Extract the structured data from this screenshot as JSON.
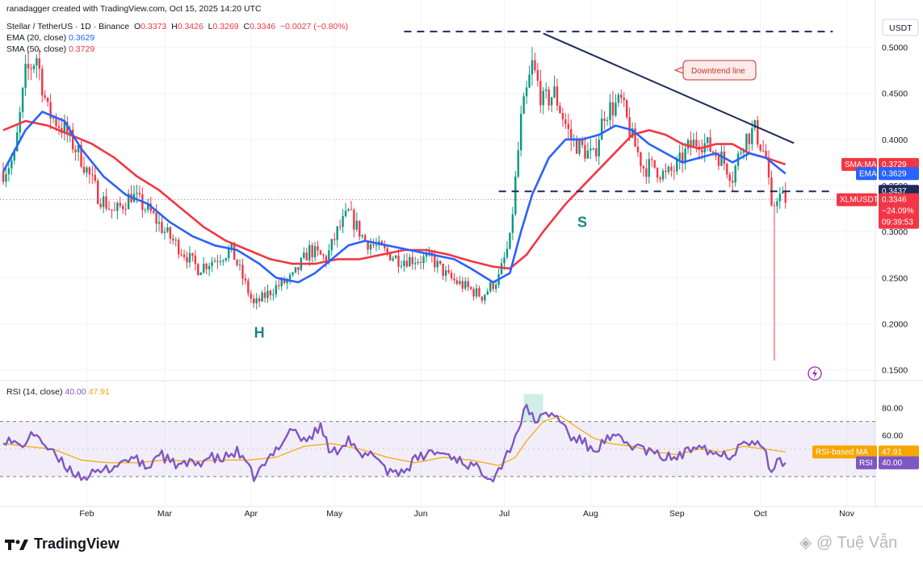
{
  "header": {
    "credit": "ranadagger created with TradingView.com, Oct 15, 2025 14:20 UTC",
    "symbol": "Stellar / TetherUS · 1D · Binance",
    "o_label": "O",
    "o": "0.3373",
    "h_label": "H",
    "h": "0.3426",
    "l_label": "L",
    "l": "0.3269",
    "c_label": "C",
    "c": "0.3346",
    "change": "−0.0027 (−0.80%)",
    "ema_label": "EMA (20, close)",
    "ema_value": "0.3629",
    "sma_label": "SMA (50, close)",
    "sma_value": "0.3729",
    "rsi_label": "RSI (14, close)",
    "rsi_value": "40.00",
    "rsi_ma_value": "47.91"
  },
  "footer": {
    "brand": "TradingView",
    "watermark": "Tuệ Vẫn"
  },
  "colors": {
    "up": "#089981",
    "down": "#f23645",
    "ema": "#2962ff",
    "sma": "#f23645",
    "rsi": "#7e57c2",
    "rsi_ma": "#f7a600",
    "trend": "#1e2a5a"
  },
  "chart_data": [
    {
      "type": "candlestick",
      "currency": "USDT",
      "ylim": [
        0.14,
        0.525
      ],
      "y_ticks": [
        "0.5000",
        "0.4500",
        "0.4000",
        "0.3500",
        "0.3000",
        "0.2500",
        "0.2000",
        "0.1500"
      ],
      "y_tick_values": [
        0.5,
        0.45,
        0.4,
        0.35,
        0.3,
        0.25,
        0.2,
        0.15
      ],
      "x_ticks": [
        "Feb",
        "Mar",
        "Apr",
        "May",
        "Jun",
        "Jul",
        "Aug",
        "Sep",
        "Oct",
        "Nov"
      ],
      "x_tick_days": [
        32,
        60,
        91,
        121,
        152,
        182,
        213,
        244,
        274,
        305
      ],
      "x_range_days": [
        2,
        315
      ],
      "series_anchors": {
        "close": [
          [
            2,
            0.365
          ],
          [
            6,
            0.38
          ],
          [
            10,
            0.47
          ],
          [
            14,
            0.49
          ],
          [
            18,
            0.43
          ],
          [
            24,
            0.41
          ],
          [
            30,
            0.38
          ],
          [
            36,
            0.34
          ],
          [
            42,
            0.32
          ],
          [
            48,
            0.34
          ],
          [
            55,
            0.32
          ],
          [
            60,
            0.3
          ],
          [
            66,
            0.28
          ],
          [
            72,
            0.26
          ],
          [
            78,
            0.27
          ],
          [
            84,
            0.28
          ],
          [
            88,
            0.25
          ],
          [
            92,
            0.22
          ],
          [
            96,
            0.23
          ],
          [
            100,
            0.24
          ],
          [
            106,
            0.25
          ],
          [
            112,
            0.28
          ],
          [
            118,
            0.27
          ],
          [
            122,
            0.3
          ],
          [
            126,
            0.32
          ],
          [
            132,
            0.29
          ],
          [
            138,
            0.28
          ],
          [
            144,
            0.27
          ],
          [
            150,
            0.27
          ],
          [
            156,
            0.27
          ],
          [
            162,
            0.25
          ],
          [
            168,
            0.24
          ],
          [
            174,
            0.23
          ],
          [
            180,
            0.25
          ],
          [
            184,
            0.29
          ],
          [
            188,
            0.42
          ],
          [
            192,
            0.48
          ],
          [
            196,
            0.44
          ],
          [
            200,
            0.45
          ],
          [
            206,
            0.4
          ],
          [
            210,
            0.39
          ],
          [
            214,
            0.38
          ],
          [
            218,
            0.43
          ],
          [
            224,
            0.44
          ],
          [
            228,
            0.4
          ],
          [
            232,
            0.37
          ],
          [
            236,
            0.37
          ],
          [
            240,
            0.36
          ],
          [
            244,
            0.37
          ],
          [
            248,
            0.39
          ],
          [
            252,
            0.4
          ],
          [
            256,
            0.39
          ],
          [
            260,
            0.38
          ],
          [
            264,
            0.36
          ],
          [
            268,
            0.4
          ],
          [
            272,
            0.41
          ],
          [
            276,
            0.38
          ],
          [
            278,
            0.32
          ],
          [
            280,
            0.34
          ],
          [
            283,
            0.3346
          ]
        ],
        "ema20": [
          [
            2,
            0.365
          ],
          [
            10,
            0.41
          ],
          [
            16,
            0.43
          ],
          [
            24,
            0.42
          ],
          [
            30,
            0.39
          ],
          [
            38,
            0.36
          ],
          [
            46,
            0.34
          ],
          [
            54,
            0.33
          ],
          [
            62,
            0.31
          ],
          [
            70,
            0.295
          ],
          [
            78,
            0.285
          ],
          [
            86,
            0.28
          ],
          [
            94,
            0.265
          ],
          [
            100,
            0.25
          ],
          [
            108,
            0.245
          ],
          [
            114,
            0.255
          ],
          [
            120,
            0.27
          ],
          [
            126,
            0.285
          ],
          [
            132,
            0.29
          ],
          [
            140,
            0.285
          ],
          [
            148,
            0.28
          ],
          [
            156,
            0.275
          ],
          [
            164,
            0.27
          ],
          [
            170,
            0.26
          ],
          [
            178,
            0.245
          ],
          [
            184,
            0.255
          ],
          [
            188,
            0.3
          ],
          [
            192,
            0.34
          ],
          [
            198,
            0.38
          ],
          [
            204,
            0.4
          ],
          [
            210,
            0.4
          ],
          [
            216,
            0.405
          ],
          [
            222,
            0.415
          ],
          [
            228,
            0.41
          ],
          [
            234,
            0.395
          ],
          [
            240,
            0.385
          ],
          [
            246,
            0.375
          ],
          [
            252,
            0.38
          ],
          [
            258,
            0.385
          ],
          [
            264,
            0.375
          ],
          [
            270,
            0.385
          ],
          [
            276,
            0.38
          ],
          [
            283,
            0.3629
          ]
        ],
        "sma50": [
          [
            2,
            0.41
          ],
          [
            10,
            0.42
          ],
          [
            18,
            0.415
          ],
          [
            26,
            0.405
          ],
          [
            34,
            0.395
          ],
          [
            42,
            0.38
          ],
          [
            50,
            0.36
          ],
          [
            58,
            0.345
          ],
          [
            66,
            0.325
          ],
          [
            74,
            0.305
          ],
          [
            82,
            0.29
          ],
          [
            90,
            0.28
          ],
          [
            98,
            0.27
          ],
          [
            106,
            0.265
          ],
          [
            114,
            0.265
          ],
          [
            122,
            0.27
          ],
          [
            130,
            0.27
          ],
          [
            138,
            0.275
          ],
          [
            146,
            0.28
          ],
          [
            154,
            0.28
          ],
          [
            162,
            0.275
          ],
          [
            170,
            0.268
          ],
          [
            178,
            0.262
          ],
          [
            184,
            0.26
          ],
          [
            190,
            0.275
          ],
          [
            196,
            0.3
          ],
          [
            204,
            0.33
          ],
          [
            212,
            0.355
          ],
          [
            220,
            0.38
          ],
          [
            228,
            0.405
          ],
          [
            234,
            0.41
          ],
          [
            240,
            0.405
          ],
          [
            246,
            0.395
          ],
          [
            252,
            0.39
          ],
          [
            258,
            0.395
          ],
          [
            264,
            0.395
          ],
          [
            270,
            0.385
          ],
          [
            276,
            0.38
          ],
          [
            283,
            0.3729
          ]
        ]
      },
      "candle_count": 283,
      "annotations": [
        {
          "kind": "hline",
          "label": "",
          "value": 0.517,
          "from_day": 146,
          "to_day": 300
        },
        {
          "kind": "hline",
          "label": "",
          "value": 0.3437,
          "from_day": 180,
          "to_day": 300
        },
        {
          "kind": "trendline",
          "label": "Downtrend line",
          "from": [
            196,
            0.515
          ],
          "to": [
            286,
            0.396
          ]
        },
        {
          "kind": "text",
          "label": "H",
          "at": [
            94,
            0.185
          ]
        },
        {
          "kind": "text",
          "label": "S",
          "at": [
            210,
            0.305
          ]
        }
      ],
      "price_tags": [
        {
          "label": "SMA:MA",
          "value": "0.3729",
          "color": "#f23645"
        },
        {
          "label": "EMA",
          "value": "0.3629",
          "color": "#2962ff"
        },
        {
          "label": "",
          "value": "0.3437",
          "color": "#1e2a5a"
        },
        {
          "label": "XLMUSDT",
          "value": "0.3346",
          "extra": [
            "−24.09%",
            "09:39:53"
          ],
          "color": "#f23645"
        }
      ]
    },
    {
      "type": "line",
      "title": "RSI (14, close)",
      "ylim": [
        10,
        95
      ],
      "y_ticks": [
        "80.00",
        "60.00"
      ],
      "y_tick_values": [
        80,
        60
      ],
      "band": [
        30,
        70
      ],
      "series": [
        {
          "name": "RSI",
          "points": [
            [
              2,
              58
            ],
            [
              8,
              52
            ],
            [
              14,
              62
            ],
            [
              18,
              50
            ],
            [
              24,
              38
            ],
            [
              30,
              30
            ],
            [
              36,
              32
            ],
            [
              42,
              38
            ],
            [
              48,
              44
            ],
            [
              54,
              36
            ],
            [
              58,
              48
            ],
            [
              62,
              40
            ],
            [
              66,
              38
            ],
            [
              72,
              40
            ],
            [
              76,
              44
            ],
            [
              80,
              42
            ],
            [
              86,
              48
            ],
            [
              92,
              30
            ],
            [
              96,
              38
            ],
            [
              100,
              50
            ],
            [
              106,
              66
            ],
            [
              110,
              55
            ],
            [
              116,
              66
            ],
            [
              120,
              46
            ],
            [
              126,
              58
            ],
            [
              130,
              44
            ],
            [
              136,
              46
            ],
            [
              140,
              34
            ],
            [
              146,
              34
            ],
            [
              150,
              42
            ],
            [
              156,
              48
            ],
            [
              162,
              46
            ],
            [
              168,
              40
            ],
            [
              172,
              36
            ],
            [
              178,
              30
            ],
            [
              182,
              42
            ],
            [
              186,
              60
            ],
            [
              190,
              80
            ],
            [
              194,
              70
            ],
            [
              198,
              76
            ],
            [
              202,
              72
            ],
            [
              206,
              58
            ],
            [
              210,
              56
            ],
            [
              214,
              48
            ],
            [
              218,
              56
            ],
            [
              222,
              58
            ],
            [
              226,
              54
            ],
            [
              232,
              50
            ],
            [
              236,
              46
            ],
            [
              240,
              44
            ],
            [
              244,
              44
            ],
            [
              248,
              48
            ],
            [
              252,
              56
            ],
            [
              256,
              48
            ],
            [
              260,
              46
            ],
            [
              264,
              46
            ],
            [
              268,
              58
            ],
            [
              272,
              55
            ],
            [
              276,
              48
            ],
            [
              278,
              30
            ],
            [
              280,
              40
            ],
            [
              283,
              40
            ]
          ]
        },
        {
          "name": "RSI-based MA",
          "points": [
            [
              2,
              54
            ],
            [
              10,
              52
            ],
            [
              20,
              50
            ],
            [
              30,
              42
            ],
            [
              40,
              40
            ],
            [
              50,
              40
            ],
            [
              60,
              42
            ],
            [
              70,
              41
            ],
            [
              80,
              42
            ],
            [
              90,
              42
            ],
            [
              100,
              44
            ],
            [
              110,
              52
            ],
            [
              120,
              54
            ],
            [
              130,
              50
            ],
            [
              140,
              44
            ],
            [
              150,
              40
            ],
            [
              160,
              44
            ],
            [
              170,
              42
            ],
            [
              180,
              38
            ],
            [
              186,
              44
            ],
            [
              190,
              56
            ],
            [
              196,
              70
            ],
            [
              202,
              74
            ],
            [
              208,
              66
            ],
            [
              214,
              58
            ],
            [
              220,
              54
            ],
            [
              228,
              52
            ],
            [
              236,
              48
            ],
            [
              244,
              46
            ],
            [
              252,
              50
            ],
            [
              260,
              48
            ],
            [
              268,
              52
            ],
            [
              276,
              50
            ],
            [
              283,
              47.91
            ]
          ]
        }
      ],
      "price_tags": [
        {
          "label": "RSI-based MA",
          "value": "47.91",
          "color": "#f7a600"
        },
        {
          "label": "RSI",
          "value": "40.00",
          "color": "#7e57c2"
        }
      ]
    }
  ]
}
